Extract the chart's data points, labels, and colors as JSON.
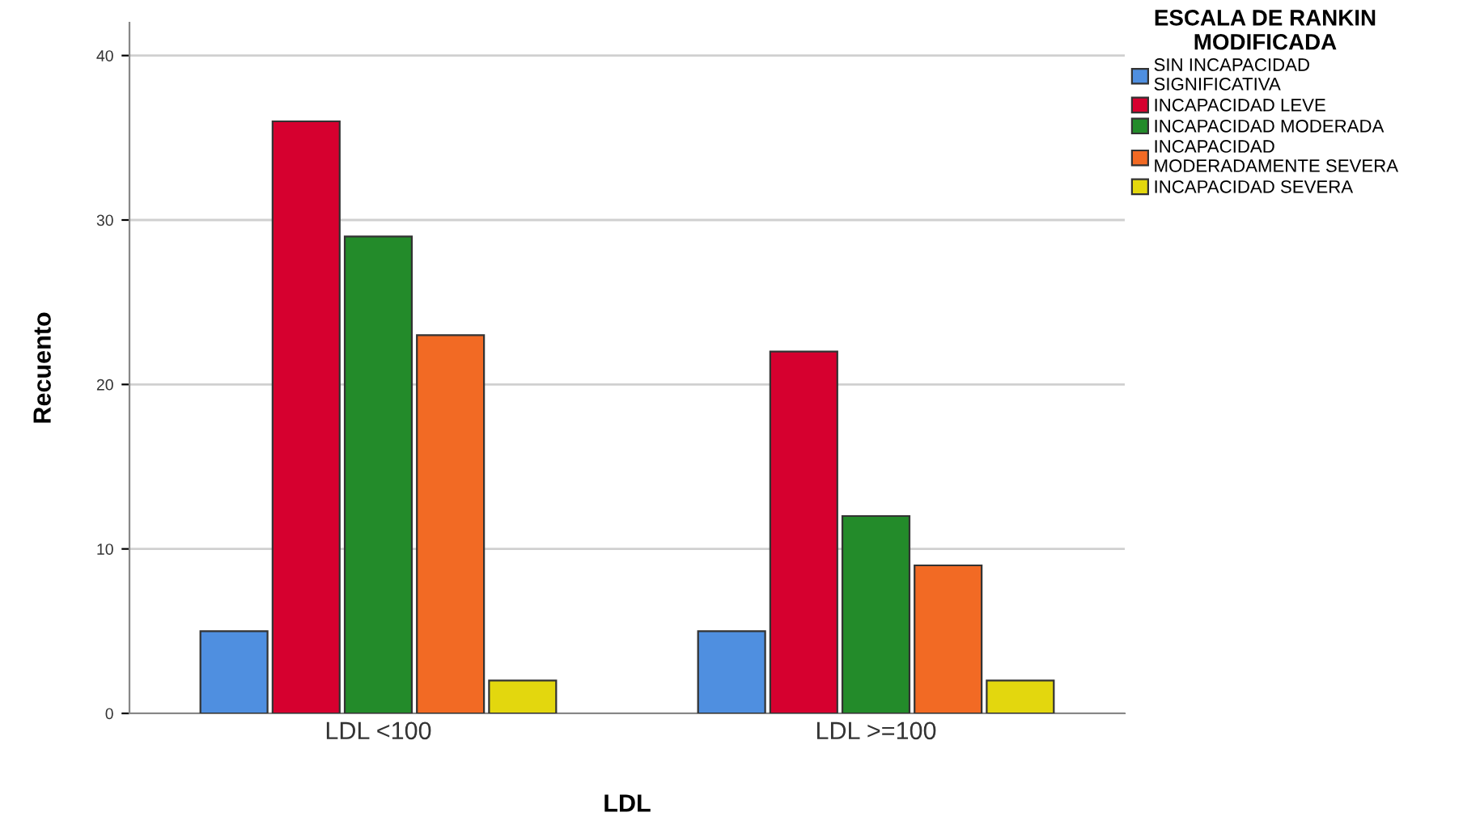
{
  "chart_data": {
    "type": "bar",
    "xlabel": "LDL",
    "ylabel": "Recuento",
    "legend_title": "ESCALA DE RANKIN\nMODIFICADA",
    "categories": [
      "LDL <100",
      "LDL >=100"
    ],
    "series": [
      {
        "name": "SIN INCAPACIDAD\nSIGNIFICATIVA",
        "color": "#4f8fe0",
        "values": [
          5,
          5
        ]
      },
      {
        "name": "INCAPACIDAD LEVE",
        "color": "#d6002f",
        "values": [
          36,
          22
        ]
      },
      {
        "name": "INCAPACIDAD MODERADA",
        "color": "#238b2a",
        "values": [
          29,
          12
        ]
      },
      {
        "name": "INCAPACIDAD\nMODERADAMENTE SEVERA",
        "color": "#f26a24",
        "values": [
          23,
          9
        ]
      },
      {
        "name": "INCAPACIDAD SEVERA",
        "color": "#e3d70e",
        "values": [
          2,
          2
        ]
      }
    ],
    "ylim": [
      0,
      42
    ],
    "yticks": [
      0,
      10,
      20,
      30,
      40
    ],
    "grid": "y",
    "legend": "top right"
  }
}
